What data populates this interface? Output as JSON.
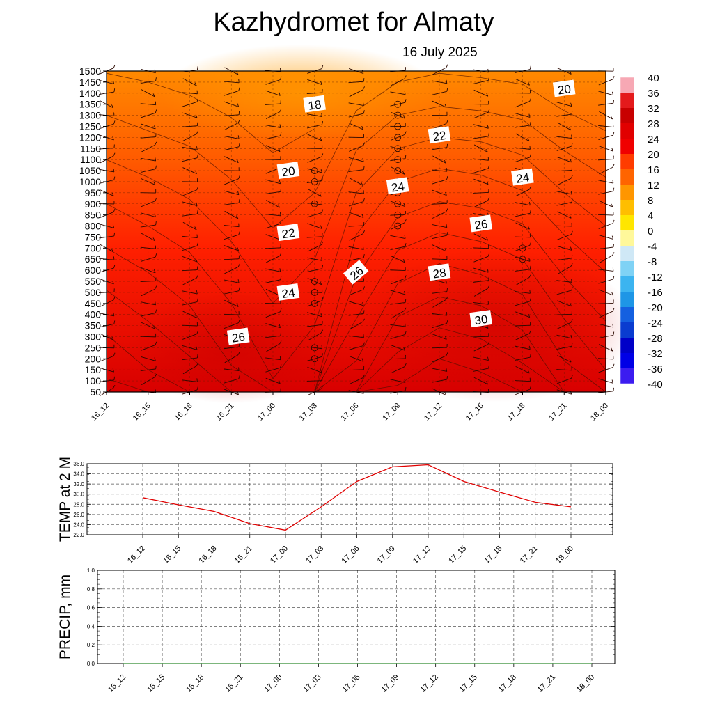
{
  "title": "Kazhydromet  for Almaty",
  "subtitle": "16 July 2025",
  "chart_data": [
    {
      "type": "heatmap",
      "x_categories": [
        "16_12",
        "16_15",
        "16_18",
        "16_21",
        "17_00",
        "17_03",
        "17_06",
        "17_09",
        "17_12",
        "17_15",
        "17_18",
        "17_21",
        "18_00"
      ],
      "y_ticks": [
        50,
        100,
        150,
        200,
        250,
        300,
        350,
        400,
        450,
        500,
        550,
        600,
        650,
        700,
        750,
        800,
        850,
        900,
        950,
        1000,
        1050,
        1100,
        1150,
        1200,
        1250,
        1300,
        1350,
        1400,
        1450,
        1500
      ],
      "contour_labels": [
        {
          "label": "18",
          "x": "17_03",
          "y": 1350
        },
        {
          "label": "20",
          "x": "17_00",
          "y": 1050
        },
        {
          "label": "20",
          "x": "17_21",
          "y": 1420
        },
        {
          "label": "22",
          "x": "17_00",
          "y": 770
        },
        {
          "label": "22",
          "x": "17_12",
          "y": 1210
        },
        {
          "label": "24",
          "x": "17_00",
          "y": 500
        },
        {
          "label": "24",
          "x": "17_09",
          "y": 980
        },
        {
          "label": "24",
          "x": "17_18",
          "y": 1020
        },
        {
          "label": "26",
          "x": "16_21",
          "y": 300
        },
        {
          "label": "26",
          "x": "17_06",
          "y": 590
        },
        {
          "label": "26",
          "x": "17_15",
          "y": 810
        },
        {
          "label": "28",
          "x": "17_12",
          "y": 590
        },
        {
          "label": "30",
          "x": "17_15",
          "y": 380
        }
      ],
      "colorbar": {
        "labels": [
          "40",
          "36",
          "32",
          "28",
          "24",
          "20",
          "16",
          "12",
          "8",
          "4",
          "0",
          "-4",
          "-8",
          "-12",
          "-16",
          "-20",
          "-24",
          "-28",
          "-32",
          "-36",
          "-40"
        ],
        "colors": [
          "#f7a8b4",
          "#e41a1c",
          "#c80000",
          "#e10000",
          "#f00000",
          "#ff3c00",
          "#ff6400",
          "#ff9600",
          "#ffbe00",
          "#ffe600",
          "#fff89a",
          "#cfe8f6",
          "#7fd2f5",
          "#3cb4f0",
          "#1e96e6",
          "#1460e0",
          "#0a3cd0",
          "#0000c8",
          "#0000e6",
          "#3c1cf0",
          "#7a28e8"
        ]
      },
      "temperature_range": [
        17,
        32
      ],
      "grid": true
    },
    {
      "type": "line",
      "ylabel": "TEMP at 2 M",
      "ylim": [
        22.0,
        36.0
      ],
      "y_ticks": [
        "36.0",
        "34.0",
        "32.0",
        "30.0",
        "28.0",
        "26.0",
        "24.0",
        "22.0"
      ],
      "x_categories": [
        "16_12",
        "16_15",
        "16_18",
        "16_21",
        "17_00",
        "17_03",
        "17_06",
        "17_09",
        "17_12",
        "17_15",
        "17_18",
        "17_21",
        "18_00"
      ],
      "series": [
        {
          "color": "#e00000",
          "values": [
            29.3,
            27.9,
            26.6,
            24.2,
            22.9,
            27.5,
            32.5,
            35.4,
            35.8,
            32.5,
            30.4,
            28.4,
            27.5
          ]
        }
      ],
      "grid": true
    },
    {
      "type": "line",
      "ylabel": "PRECIP, mm",
      "ylim": [
        0.0,
        1.0
      ],
      "y_ticks": [
        "1.0",
        "0.8",
        "0.6",
        "0.4",
        "0.2",
        "0.0"
      ],
      "x_categories": [
        "16_12",
        "16_15",
        "16_18",
        "16_21",
        "17_00",
        "17_03",
        "17_06",
        "17_09",
        "17_12",
        "17_15",
        "17_18",
        "17_21",
        "18_00"
      ],
      "series": [
        {
          "color": "#2e8b2e",
          "values": [
            0,
            0,
            0,
            0,
            0,
            0,
            0,
            0,
            0,
            0,
            0,
            0,
            0
          ]
        }
      ],
      "grid": true
    }
  ]
}
